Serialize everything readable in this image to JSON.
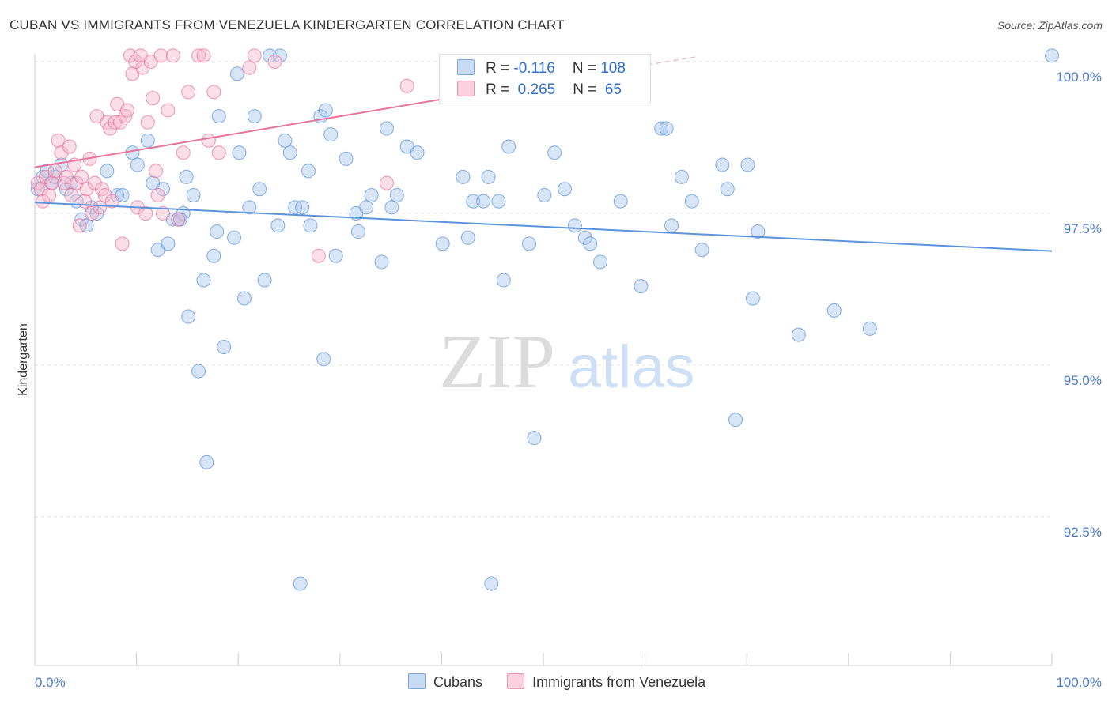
{
  "header": {
    "title": "CUBAN VS IMMIGRANTS FROM VENEZUELA KINDERGARTEN CORRELATION CHART",
    "source": "Source: ZipAtlas.com"
  },
  "watermark": {
    "zip": "ZIP",
    "atlas": "atlas"
  },
  "legend": {
    "rows": [
      {
        "r_label": "R = ",
        "r_value": "-0.116",
        "n_label": "N = ",
        "n_value": "108",
        "color": "#a9c6ee"
      },
      {
        "r_label": "R = ",
        "r_value": " 0.265",
        "n_label": "N = ",
        "n_value": " 65",
        "color": "#f6b8cc"
      }
    ]
  },
  "bottom_legend": [
    {
      "label": "Cubans",
      "color": "#a9c6ee"
    },
    {
      "label": "Immigrants from Venezuela",
      "color": "#f6b8cc"
    }
  ],
  "chart_data": {
    "type": "scatter",
    "ylabel": "Kindergarten",
    "xlim": [
      0,
      100
    ],
    "ylim": [
      90.0,
      100.5
    ],
    "x_tick_labels": [
      {
        "value": 0,
        "label": "0.0%"
      },
      {
        "value": 100,
        "label": "100.0%"
      }
    ],
    "y_tick_labels": [
      {
        "value": 100.0,
        "label": "100.0%"
      },
      {
        "value": 97.5,
        "label": "97.5%"
      },
      {
        "value": 95.0,
        "label": "95.0%"
      },
      {
        "value": 92.5,
        "label": "92.5%"
      }
    ],
    "grid": true,
    "series": [
      {
        "name": "Cubans",
        "color": "#5b93dc",
        "fill": "#a9c6ee",
        "trend": {
          "x": [
            0,
            100
          ],
          "y": [
            97.68,
            96.88
          ]
        },
        "points": [
          [
            0.3,
            97.9
          ],
          [
            0.8,
            98.1
          ],
          [
            1.2,
            98.2
          ],
          [
            1.6,
            98.0
          ],
          [
            2.0,
            98.1
          ],
          [
            2.6,
            98.3
          ],
          [
            3.1,
            97.9
          ],
          [
            3.6,
            98.0
          ],
          [
            4.1,
            97.7
          ],
          [
            4.6,
            97.4
          ],
          [
            5.1,
            97.3
          ],
          [
            5.6,
            97.6
          ],
          [
            6.1,
            97.5
          ],
          [
            7.1,
            98.2
          ],
          [
            8.1,
            97.8
          ],
          [
            8.6,
            97.8
          ],
          [
            9.6,
            98.5
          ],
          [
            10.1,
            98.3
          ],
          [
            11.1,
            98.7
          ],
          [
            11.6,
            98.0
          ],
          [
            12.1,
            96.9
          ],
          [
            12.6,
            97.9
          ],
          [
            13.1,
            97.0
          ],
          [
            13.6,
            97.4
          ],
          [
            14.1,
            97.4
          ],
          [
            14.6,
            97.5
          ],
          [
            14.9,
            98.1
          ],
          [
            14.3,
            97.4
          ],
          [
            15.1,
            95.8
          ],
          [
            15.6,
            97.8
          ],
          [
            16.1,
            94.9
          ],
          [
            16.6,
            96.4
          ],
          [
            16.9,
            93.4
          ],
          [
            17.6,
            96.8
          ],
          [
            17.9,
            97.2
          ],
          [
            18.1,
            99.1
          ],
          [
            18.6,
            95.3
          ],
          [
            19.6,
            97.1
          ],
          [
            19.9,
            99.8
          ],
          [
            20.1,
            98.5
          ],
          [
            20.6,
            96.1
          ],
          [
            21.1,
            97.6
          ],
          [
            21.6,
            99.1
          ],
          [
            22.1,
            97.9
          ],
          [
            22.6,
            96.4
          ],
          [
            23.1,
            100.1
          ],
          [
            23.9,
            97.3
          ],
          [
            24.1,
            100.1
          ],
          [
            24.6,
            98.7
          ],
          [
            25.1,
            98.5
          ],
          [
            25.6,
            97.6
          ],
          [
            26.1,
            91.4
          ],
          [
            26.9,
            98.2
          ],
          [
            27.1,
            97.3
          ],
          [
            28.1,
            99.1
          ],
          [
            28.4,
            95.1
          ],
          [
            28.6,
            99.2
          ],
          [
            29.1,
            98.8
          ],
          [
            29.6,
            96.8
          ],
          [
            30.6,
            98.4
          ],
          [
            31.6,
            97.5
          ],
          [
            31.8,
            97.2
          ],
          [
            32.6,
            97.6
          ],
          [
            33.1,
            97.8
          ],
          [
            34.1,
            96.7
          ],
          [
            34.6,
            98.9
          ],
          [
            35.1,
            97.6
          ],
          [
            35.6,
            97.8
          ],
          [
            36.6,
            98.6
          ],
          [
            37.6,
            98.5
          ],
          [
            40.1,
            97.0
          ],
          [
            42.1,
            98.1
          ],
          [
            42.6,
            97.1
          ],
          [
            43.1,
            97.7
          ],
          [
            44.1,
            97.7
          ],
          [
            44.6,
            98.1
          ],
          [
            44.9,
            91.4
          ],
          [
            45.6,
            97.7
          ],
          [
            46.1,
            96.4
          ],
          [
            46.6,
            98.6
          ],
          [
            48.6,
            97.0
          ],
          [
            49.1,
            93.8
          ],
          [
            50.1,
            97.8
          ],
          [
            51.1,
            98.5
          ],
          [
            52.1,
            97.9
          ],
          [
            53.1,
            97.3
          ],
          [
            54.1,
            97.1
          ],
          [
            54.6,
            97.0
          ],
          [
            55.6,
            96.7
          ],
          [
            57.6,
            97.7
          ],
          [
            59.6,
            96.3
          ],
          [
            61.6,
            98.9
          ],
          [
            62.1,
            98.9
          ],
          [
            62.6,
            97.3
          ],
          [
            63.6,
            98.1
          ],
          [
            64.6,
            97.7
          ],
          [
            65.6,
            96.9
          ],
          [
            67.6,
            98.3
          ],
          [
            68.1,
            97.9
          ],
          [
            68.9,
            94.1
          ],
          [
            70.1,
            98.3
          ],
          [
            70.6,
            96.1
          ],
          [
            71.1,
            97.2
          ],
          [
            75.1,
            95.5
          ],
          [
            78.6,
            95.9
          ],
          [
            82.1,
            95.6
          ],
          [
            100.0,
            100.1
          ],
          [
            26.3,
            97.6
          ]
        ]
      },
      {
        "name": "Immigrants from Venezuela",
        "color": "#e8739a",
        "fill": "#f6b8cc",
        "trend": {
          "x": [
            0,
            40
          ],
          "y": [
            98.26,
            99.38
          ],
          "dash_to": {
            "x": 65,
            "y": 100.08
          }
        },
        "points": [
          [
            0.3,
            98.0
          ],
          [
            0.6,
            97.9
          ],
          [
            0.8,
            97.7
          ],
          [
            1.1,
            98.1
          ],
          [
            1.4,
            97.8
          ],
          [
            1.7,
            98.0
          ],
          [
            2.0,
            98.2
          ],
          [
            2.3,
            98.7
          ],
          [
            2.6,
            98.5
          ],
          [
            2.9,
            98.0
          ],
          [
            3.1,
            98.1
          ],
          [
            3.4,
            98.6
          ],
          [
            3.6,
            97.8
          ],
          [
            3.9,
            98.3
          ],
          [
            4.1,
            98.0
          ],
          [
            4.4,
            97.3
          ],
          [
            4.6,
            98.1
          ],
          [
            4.9,
            97.7
          ],
          [
            5.1,
            97.9
          ],
          [
            5.4,
            98.4
          ],
          [
            5.6,
            97.5
          ],
          [
            5.9,
            98.0
          ],
          [
            6.1,
            99.1
          ],
          [
            6.4,
            97.6
          ],
          [
            6.6,
            97.9
          ],
          [
            6.9,
            97.8
          ],
          [
            7.1,
            99.0
          ],
          [
            7.4,
            98.9
          ],
          [
            7.6,
            97.7
          ],
          [
            7.9,
            99.0
          ],
          [
            8.1,
            99.3
          ],
          [
            8.4,
            99.0
          ],
          [
            8.6,
            97.0
          ],
          [
            8.9,
            99.1
          ],
          [
            9.1,
            99.2
          ],
          [
            9.4,
            100.1
          ],
          [
            9.6,
            99.8
          ],
          [
            9.9,
            100.0
          ],
          [
            10.1,
            97.6
          ],
          [
            10.4,
            100.1
          ],
          [
            10.6,
            99.9
          ],
          [
            10.9,
            97.5
          ],
          [
            11.1,
            99.0
          ],
          [
            11.4,
            100.0
          ],
          [
            11.6,
            99.4
          ],
          [
            11.9,
            98.2
          ],
          [
            12.1,
            97.8
          ],
          [
            12.4,
            100.1
          ],
          [
            12.6,
            97.5
          ],
          [
            13.1,
            99.2
          ],
          [
            13.6,
            100.1
          ],
          [
            14.1,
            97.4
          ],
          [
            14.6,
            98.5
          ],
          [
            15.1,
            99.5
          ],
          [
            16.1,
            100.1
          ],
          [
            16.6,
            100.1
          ],
          [
            17.1,
            98.7
          ],
          [
            17.6,
            99.5
          ],
          [
            18.1,
            98.5
          ],
          [
            21.1,
            99.9
          ],
          [
            21.6,
            100.1
          ],
          [
            23.6,
            100.0
          ],
          [
            27.9,
            96.8
          ],
          [
            34.6,
            98.0
          ],
          [
            36.6,
            99.6
          ]
        ]
      }
    ]
  }
}
